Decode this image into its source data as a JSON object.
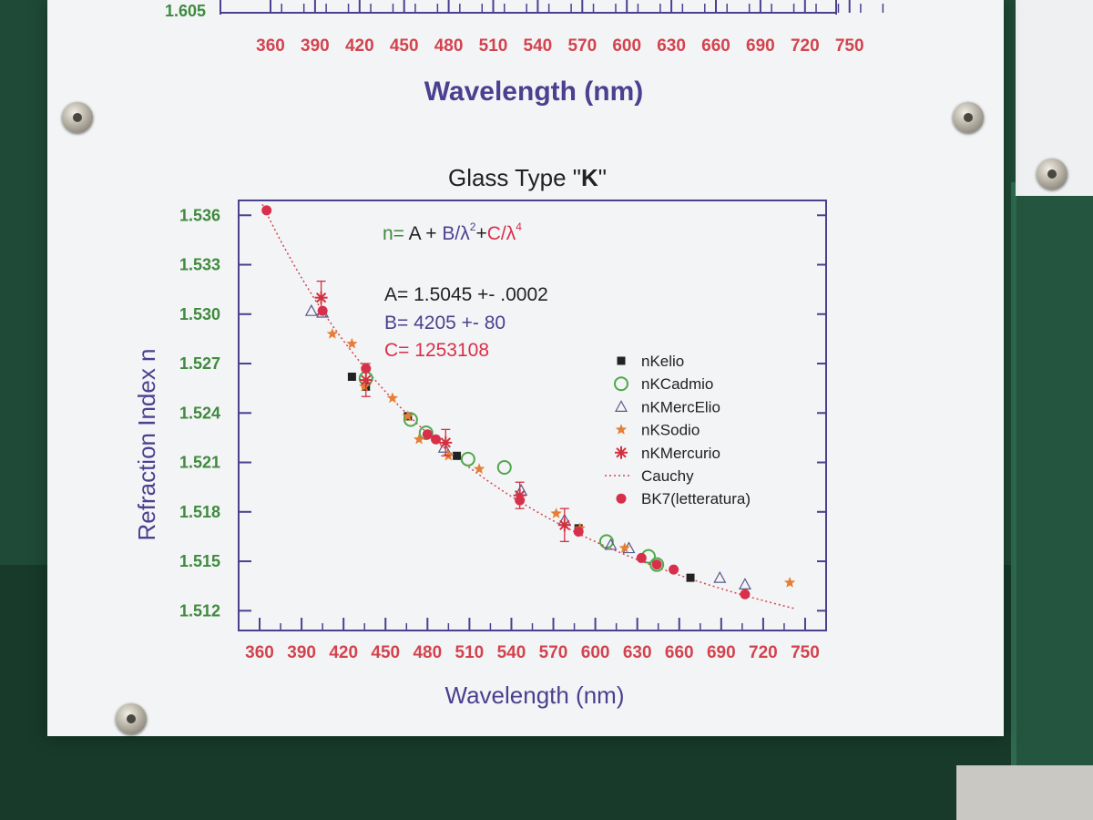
{
  "top_chart": {
    "y_tick_label": "1.605",
    "x_ticks": [
      360,
      390,
      420,
      450,
      480,
      510,
      540,
      570,
      600,
      630,
      660,
      690,
      720,
      750
    ],
    "xlabel": "Wavelength (nm)"
  },
  "chart_data": {
    "type": "scatter",
    "title_prefix": "Glass Type \"",
    "title_bold": "K",
    "title_suffix": "\"",
    "xlabel": "Wavelength (nm)",
    "ylabel": "Refraction Index n",
    "xlim": [
      345,
      765
    ],
    "ylim": [
      1.5108,
      1.5369
    ],
    "x_ticks": [
      360,
      390,
      420,
      450,
      480,
      510,
      540,
      570,
      600,
      630,
      660,
      690,
      720,
      750
    ],
    "y_ticks": [
      1.536,
      1.533,
      1.53,
      1.527,
      1.524,
      1.521,
      1.518,
      1.515,
      1.512
    ],
    "annotations": {
      "formula_n": "n=",
      "formula_A": " A + ",
      "formula_B": "B/λ",
      "formula_exp2": "2",
      "formula_plus": "+",
      "formula_C": "C/λ",
      "formula_exp4": "4",
      "A": "A= 1.5045 +- .0002",
      "B": "B= 4205 +- 80",
      "C": "C= 1253108"
    },
    "legend_position": "right",
    "colors": {
      "frame": "#4b3f8f",
      "tick_x": "#d3434e",
      "tick_y": "#3f8a3d",
      "nKelio": "#222222",
      "nKCadmio": "#4fa84b",
      "nKMercElio": "#5a5a8a",
      "nKSodio": "#e67e35",
      "nKMercurio": "#d3303e",
      "Cauchy": "#d3434e",
      "BK7": "#d8304a",
      "formula_green": "#3f8a3d",
      "formula_blue": "#4b3f8f",
      "formula_red": "#d8304a"
    },
    "series": [
      {
        "name": "nKelio",
        "marker": "square",
        "points": [
          [
            426,
            1.5262
          ],
          [
            436,
            1.5256
          ],
          [
            466,
            1.5238
          ],
          [
            501,
            1.5214
          ],
          [
            588,
            1.517
          ],
          [
            668,
            1.514
          ]
        ]
      },
      {
        "name": "nKCadmio",
        "marker": "circle-open",
        "points": [
          [
            436,
            1.5261
          ],
          [
            468,
            1.5236
          ],
          [
            479,
            1.5228
          ],
          [
            509,
            1.5212
          ],
          [
            535,
            1.5207
          ],
          [
            608,
            1.5162
          ],
          [
            638,
            1.5153
          ],
          [
            644,
            1.5148
          ]
        ]
      },
      {
        "name": "nKMercElio",
        "marker": "triangle-open",
        "points": [
          [
            397,
            1.5302
          ],
          [
            405,
            1.5301
          ],
          [
            492,
            1.5219
          ],
          [
            547,
            1.5193
          ],
          [
            578,
            1.5175
          ],
          [
            611,
            1.516
          ],
          [
            624,
            1.5158
          ],
          [
            689,
            1.514
          ],
          [
            707,
            1.5136
          ]
        ]
      },
      {
        "name": "nKSodio",
        "marker": "star",
        "points": [
          [
            412,
            1.5288
          ],
          [
            426,
            1.5282
          ],
          [
            435,
            1.5256
          ],
          [
            455,
            1.5249
          ],
          [
            466,
            1.5238
          ],
          [
            474,
            1.5224
          ],
          [
            495,
            1.5214
          ],
          [
            517,
            1.5206
          ],
          [
            572,
            1.5179
          ],
          [
            589,
            1.517
          ],
          [
            621,
            1.5158
          ],
          [
            739,
            1.5137
          ]
        ]
      },
      {
        "name": "nKMercurio",
        "marker": "asterisk",
        "points": [
          [
            404,
            1.531
          ],
          [
            436,
            1.526
          ],
          [
            493,
            1.5222
          ],
          [
            546,
            1.519
          ],
          [
            578,
            1.5172
          ]
        ],
        "errors": [
          0.001,
          0.001,
          0.0008,
          0.0008,
          0.001
        ]
      },
      {
        "name": "Cauchy",
        "marker": "dotted-line",
        "A": 1.5045,
        "B": 4205,
        "C": 1253108
      },
      {
        "name": "BK7(letteratura)",
        "marker": "circle-filled",
        "points": [
          [
            365,
            1.5363
          ],
          [
            405,
            1.5302
          ],
          [
            436,
            1.5267
          ],
          [
            480,
            1.5227
          ],
          [
            486,
            1.5224
          ],
          [
            546,
            1.5187
          ],
          [
            588,
            1.5168
          ],
          [
            633,
            1.5152
          ],
          [
            644,
            1.5148
          ],
          [
            656,
            1.5145
          ],
          [
            707,
            1.513
          ]
        ]
      }
    ]
  }
}
